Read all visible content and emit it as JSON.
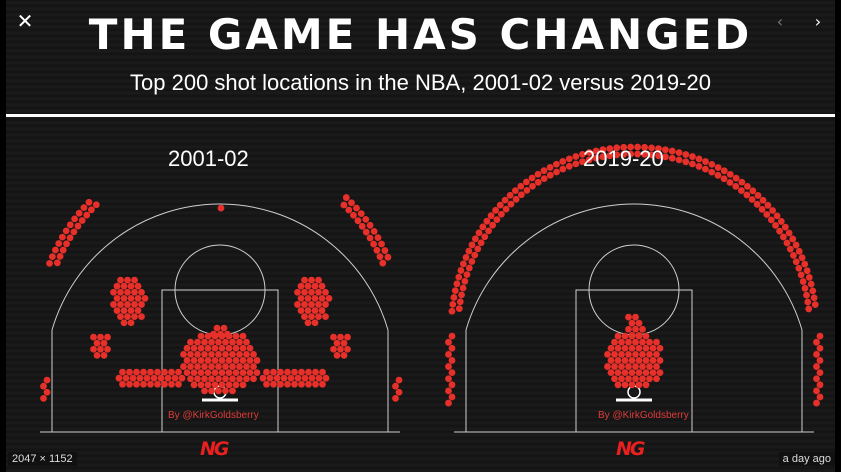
{
  "viewer": {
    "close_icon": "close-icon",
    "prev_icon": "chevron-left-icon",
    "next_icon": "chevron-right-icon",
    "close_glyph": "✕",
    "prev_glyph": "‹",
    "next_glyph": "›",
    "dimensions": "2047 × 1152",
    "age": "a day ago"
  },
  "graphic": {
    "title": "THE GAME HAS CHANGED",
    "subtitle": "Top 200 shot locations in the NBA, 2001-02 versus 2019-20",
    "accent_color": "#e8302a",
    "left_season": "2001-02",
    "right_season": "2019-20",
    "credit": "By @KirkGoldsberry",
    "logo_text": "NG"
  }
}
